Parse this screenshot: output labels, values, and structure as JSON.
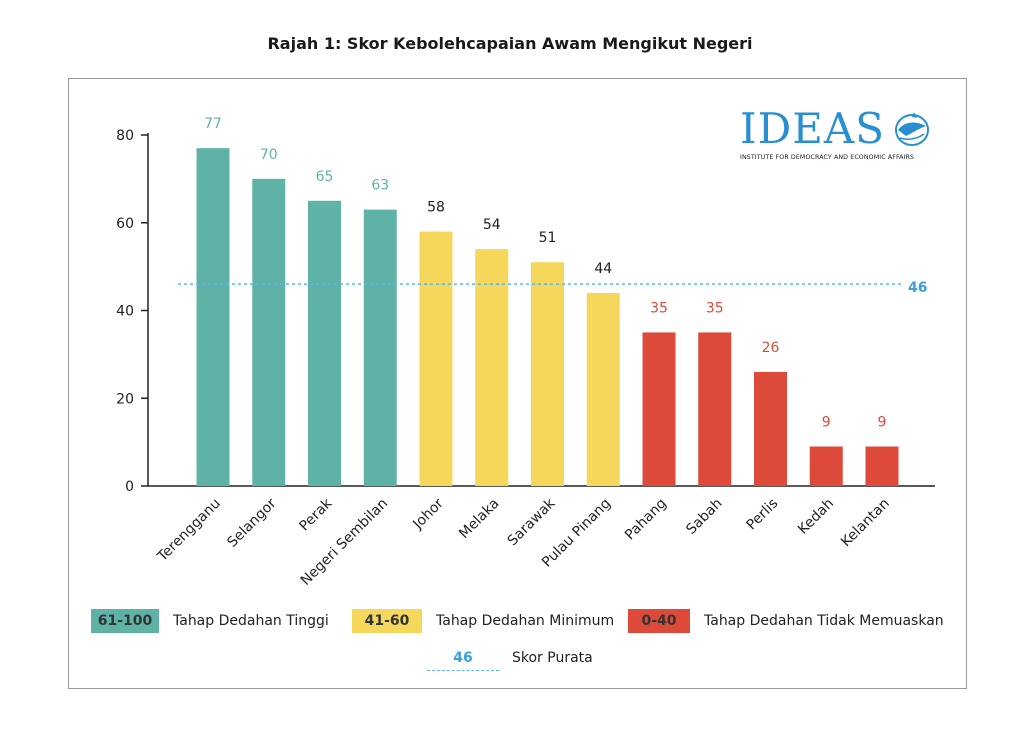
{
  "title": "Rajah 1: Skor Kebolehcapaian Awam Mengikut Negeri",
  "logo": {
    "name": "IDEAS",
    "tagline": "INSTITUTE FOR DEMOCRACY AND ECONOMIC AFFAIRS"
  },
  "chart_data": {
    "type": "bar",
    "categories": [
      "Terengganu",
      "Selangor",
      "Perak",
      "Negeri Sembilan",
      "Johor",
      "Melaka",
      "Sarawak",
      "Pulau Pinang",
      "Pahang",
      "Sabah",
      "Perlis",
      "Kedah",
      "Kelantan"
    ],
    "values": [
      77,
      70,
      65,
      63,
      58,
      54,
      51,
      44,
      35,
      35,
      26,
      9,
      9
    ],
    "tiers": [
      "high",
      "high",
      "high",
      "high",
      "mid",
      "mid",
      "mid",
      "mid",
      "low",
      "low",
      "low",
      "low",
      "low"
    ],
    "ylim": [
      0,
      80
    ],
    "yticks": [
      0,
      20,
      40,
      60,
      80
    ],
    "average": 46,
    "colors": {
      "high": "#5fb3a6",
      "mid": "#f5d75c",
      "low": "#de4a3a",
      "average": "#5bb7e4",
      "axis": "#222222"
    },
    "label_colors": {
      "high": "#5fb3a6",
      "mid": "#222222",
      "low": "#de4a3a"
    }
  },
  "legend": [
    {
      "range": "61-100",
      "label": "Tahap Dedahan Tinggi",
      "color": "#5fb3a6"
    },
    {
      "range": "41-60",
      "label": "Tahap Dedahan Minimum",
      "color": "#f5d75c"
    },
    {
      "range": "0-40",
      "label": "Tahap Dedahan Tidak Memuaskan",
      "color": "#de4a3a"
    }
  ],
  "average_legend": {
    "value": "46",
    "label": "Skor Purata"
  }
}
